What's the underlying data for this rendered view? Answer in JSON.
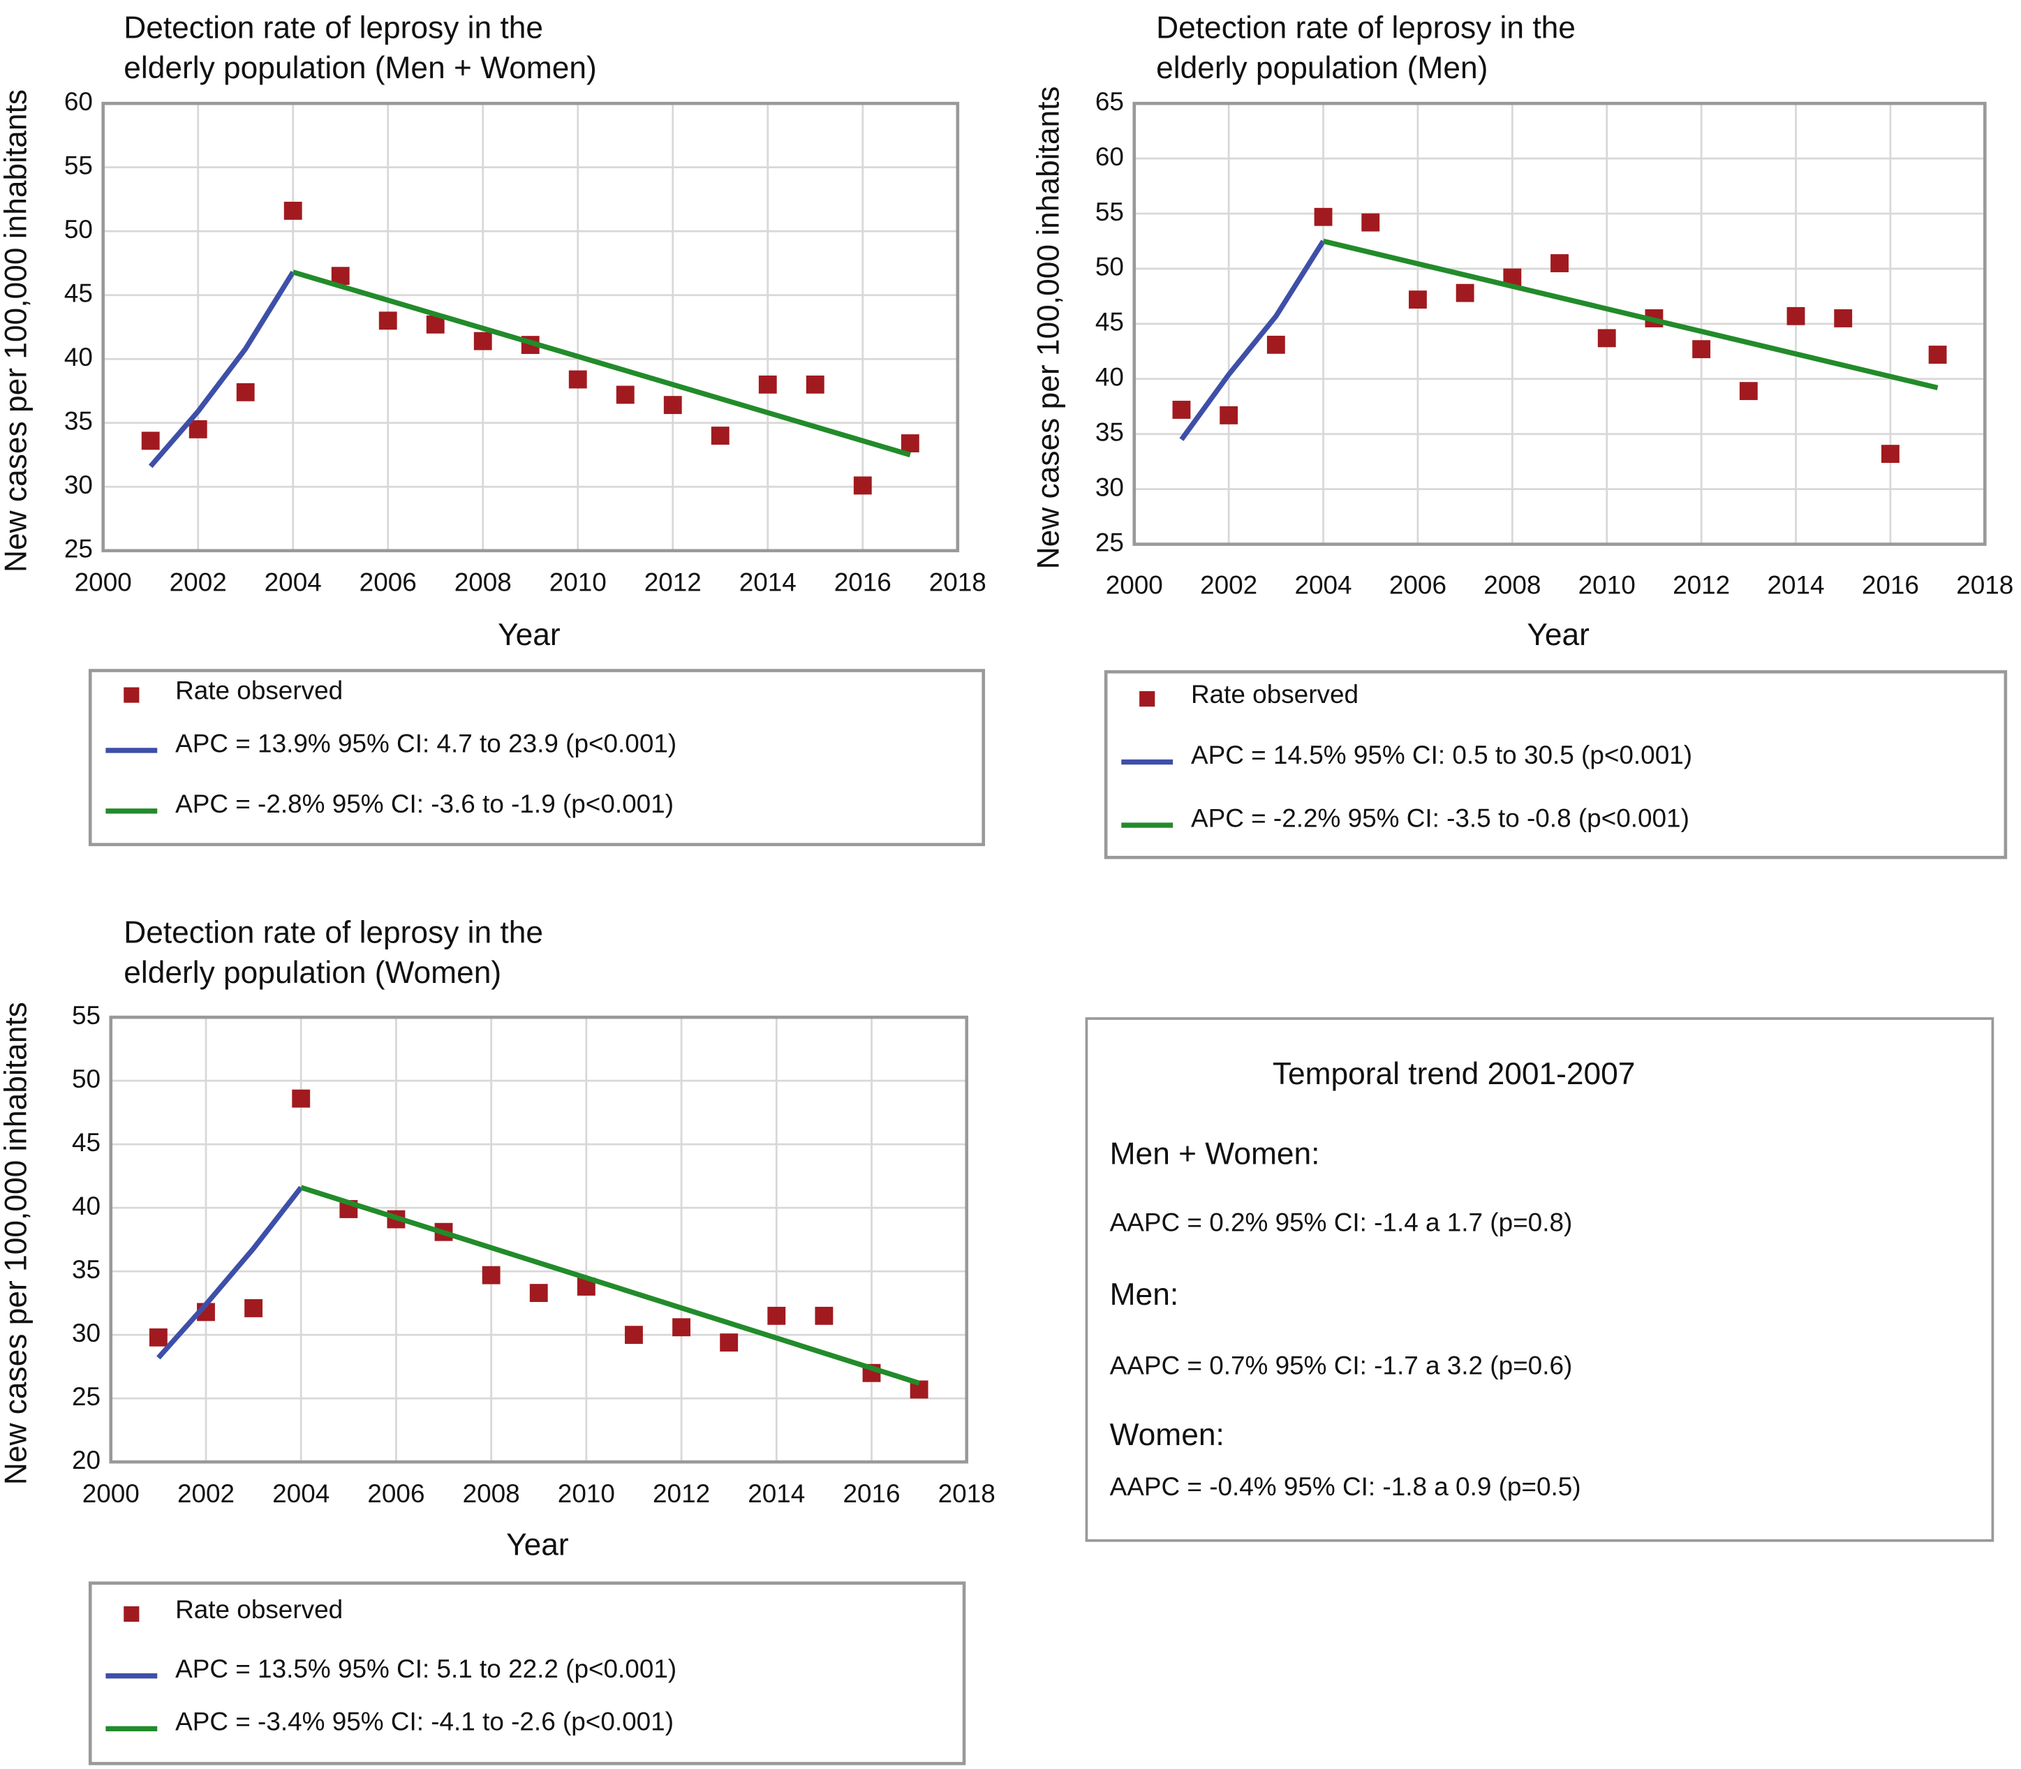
{
  "chart_data": [
    {
      "type": "scatter",
      "title": [
        "Detection rate of leprosy in the",
        "elderly population (Men + Women)"
      ],
      "x_label": "Year",
      "y_label": "New cases per 100,000 inhabitants",
      "xlim": [
        2000,
        2018
      ],
      "xticks": [
        2000,
        2002,
        2004,
        2006,
        2008,
        2010,
        2012,
        2014,
        2016,
        2018
      ],
      "ylim": [
        25,
        60
      ],
      "yticks": [
        25,
        30,
        35,
        40,
        45,
        50,
        55,
        60
      ],
      "grid": true,
      "series": [
        {
          "name": "Rate observed",
          "color": "#a11a1f",
          "marker": "square",
          "x": [
            2001,
            2002,
            2003,
            2004,
            2005,
            2006,
            2007,
            2008,
            2009,
            2010,
            2011,
            2012,
            2013,
            2014,
            2015,
            2016,
            2017
          ],
          "values": [
            33.6,
            34.5,
            37.4,
            51.6,
            46.5,
            43.0,
            42.7,
            41.4,
            41.1,
            38.4,
            37.2,
            36.4,
            34.0,
            38.0,
            38.0,
            30.1,
            33.4
          ]
        },
        {
          "name": "APC = 13.9% 95% CI: 4.7 to 23.9 (p<0.001)",
          "color": "#3e4fa8",
          "marker": "line",
          "x": [
            2001,
            2002,
            2003,
            2004
          ],
          "values": [
            31.6,
            35.9,
            40.8,
            46.8
          ]
        },
        {
          "name": "APC = -2.8% 95% CI: -3.6 to -1.9 (p<0.001)",
          "color": "#228b2a",
          "marker": "line",
          "x": [
            2004,
            2017
          ],
          "values": [
            46.8,
            32.5
          ]
        }
      ]
    },
    {
      "type": "scatter",
      "title": [
        "Detection rate of leprosy in the",
        "elderly population (Men)"
      ],
      "x_label": "Year",
      "y_label": "New cases per 100,000 inhabitants",
      "xlim": [
        2000,
        2018
      ],
      "xticks": [
        2000,
        2002,
        2004,
        2006,
        2008,
        2010,
        2012,
        2014,
        2016,
        2018
      ],
      "ylim": [
        25,
        65
      ],
      "yticks": [
        25,
        30,
        35,
        40,
        45,
        50,
        55,
        60,
        65
      ],
      "grid": true,
      "series": [
        {
          "name": "Rate observed",
          "color": "#a11a1f",
          "marker": "square",
          "x": [
            2001,
            2002,
            2003,
            2004,
            2005,
            2006,
            2007,
            2008,
            2009,
            2010,
            2011,
            2012,
            2013,
            2014,
            2015,
            2016,
            2017
          ],
          "values": [
            37.2,
            36.7,
            43.1,
            54.7,
            54.2,
            47.2,
            47.8,
            49.2,
            50.5,
            43.7,
            45.5,
            42.7,
            38.9,
            45.7,
            45.5,
            33.2,
            42.2
          ]
        },
        {
          "name": "APC = 14.5% 95% CI: 0.5 to 30.5 (p<0.001)",
          "color": "#3e4fa8",
          "marker": "line",
          "x": [
            2001,
            2002,
            2003,
            2004
          ],
          "values": [
            34.5,
            40.4,
            45.7,
            52.5
          ]
        },
        {
          "name": "APC = -2.2% 95% CI: -3.5 to -0.8 (p<0.001)",
          "color": "#228b2a",
          "marker": "line",
          "x": [
            2004,
            2017
          ],
          "values": [
            52.5,
            39.2
          ]
        }
      ]
    },
    {
      "type": "scatter",
      "title": [
        "Detection rate of leprosy in the",
        "elderly population (Women)"
      ],
      "x_label": "Year",
      "y_label": "New cases per 100,000 inhabitants",
      "xlim": [
        2000,
        2018
      ],
      "xticks": [
        2000,
        2002,
        2004,
        2006,
        2008,
        2010,
        2012,
        2014,
        2016,
        2018
      ],
      "ylim": [
        20,
        55
      ],
      "yticks": [
        20,
        25,
        30,
        35,
        40,
        45,
        50,
        55
      ],
      "grid": true,
      "series": [
        {
          "name": "Rate observed",
          "color": "#a11a1f",
          "marker": "square",
          "x": [
            2001,
            2002,
            2003,
            2004,
            2005,
            2006,
            2007,
            2008,
            2009,
            2010,
            2011,
            2012,
            2013,
            2014,
            2015,
            2016,
            2017
          ],
          "values": [
            29.8,
            31.8,
            32.1,
            48.6,
            39.9,
            39.1,
            38.1,
            34.7,
            33.3,
            33.8,
            30.0,
            30.6,
            29.4,
            31.5,
            31.5,
            27.0,
            25.7
          ]
        },
        {
          "name": "APC = 13.5% 95% CI: 5.1 to 22.2 (p<0.001)",
          "color": "#3e4fa8",
          "marker": "line",
          "x": [
            2001,
            2002,
            2003,
            2004
          ],
          "values": [
            28.2,
            32.4,
            36.8,
            41.6
          ]
        },
        {
          "name": "APC = -3.4% 95% CI: -4.1 to -2.6 (p<0.001)",
          "color": "#228b2a",
          "marker": "line",
          "x": [
            2004,
            2017
          ],
          "values": [
            41.6,
            26.2
          ]
        }
      ]
    }
  ],
  "summary": {
    "title": "Temporal trend 2001-2007",
    "groups": [
      {
        "label": "Men + Women:",
        "text": "AAPC = 0.2% 95% CI: -1.4 a 1.7 (p=0.8)"
      },
      {
        "label": "Men:",
        "text": "AAPC = 0.7% 95% CI: -1.7 a 3.2 (p=0.6)"
      },
      {
        "label": "Women:",
        "text": "AAPC = -0.4% 95% CI: -1.8 a 0.9 (p=0.5)"
      }
    ]
  }
}
